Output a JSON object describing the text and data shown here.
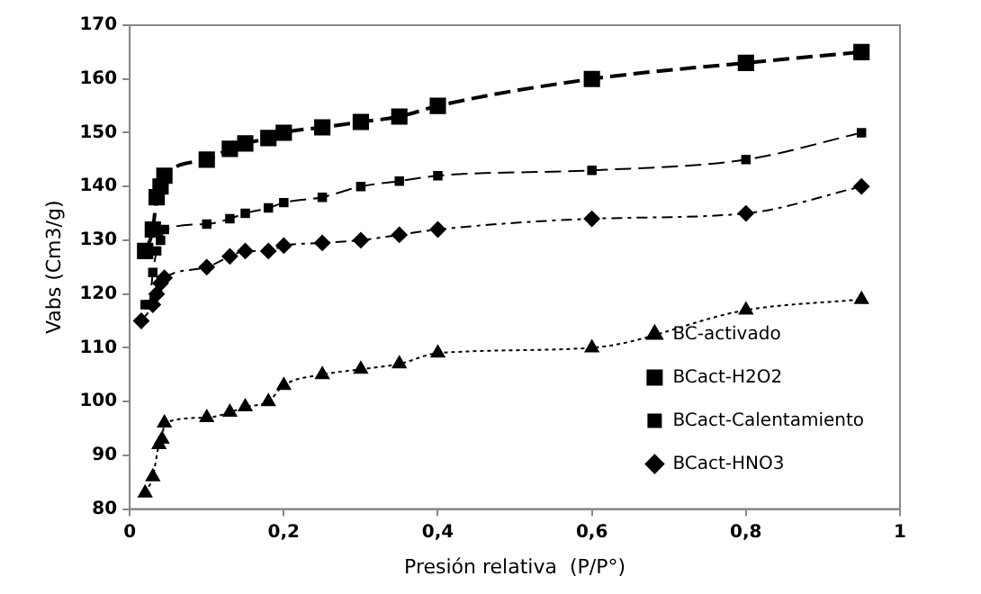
{
  "chart_data": {
    "type": "line",
    "xlabel": "Presión relativa  (P/P°)",
    "ylabel": "Vabs (Cm3/g)",
    "xlim": [
      0,
      1
    ],
    "xticks": [
      0,
      {
        "value": 0.2,
        "label": "0,2"
      },
      {
        "value": 0.4,
        "label": "0,4"
      },
      {
        "value": 0.6,
        "label": "0,6"
      },
      {
        "value": 0.8,
        "label": "0,8"
      },
      1
    ],
    "ylim": [
      80,
      170
    ],
    "yticks": [
      80,
      90,
      100,
      110,
      120,
      130,
      140,
      150,
      160,
      170
    ],
    "legend": "bottom right",
    "series": [
      {
        "name": "BC-activado",
        "color": "#000000",
        "marker": "triangle",
        "line_style": "dotted",
        "x": [
          0.02,
          0.03,
          0.038,
          0.042,
          0.045,
          0.1,
          0.13,
          0.15,
          0.18,
          0.2,
          0.25,
          0.3,
          0.35,
          0.4,
          0.6,
          0.8,
          0.95
        ],
        "values": [
          83,
          86,
          92,
          93,
          96,
          97,
          98,
          99,
          100,
          103,
          105,
          106,
          107,
          109,
          110,
          117,
          119
        ]
      },
      {
        "name": "BCact-H2O2",
        "color": "#000000",
        "marker": "square",
        "line_style": "dashed",
        "x": [
          0.02,
          0.03,
          0.035,
          0.04,
          0.045,
          0.1,
          0.13,
          0.15,
          0.18,
          0.2,
          0.25,
          0.3,
          0.35,
          0.4,
          0.6,
          0.8,
          0.95
        ],
        "values": [
          128,
          132,
          138,
          140,
          142,
          145,
          147,
          148,
          149,
          150,
          151,
          152,
          153,
          155,
          160,
          163,
          165
        ]
      },
      {
        "name": "BCact-Calentamiento",
        "color": "#000000",
        "marker": "square",
        "line_style": "dashed",
        "x": [
          0.02,
          0.025,
          0.03,
          0.035,
          0.04,
          0.045,
          0.1,
          0.13,
          0.15,
          0.18,
          0.2,
          0.25,
          0.3,
          0.35,
          0.4,
          0.6,
          0.8,
          0.95
        ],
        "values": [
          118,
          118,
          124,
          128,
          130,
          132,
          133,
          134,
          135,
          136,
          137,
          138,
          140,
          141,
          142,
          143,
          145,
          150
        ]
      },
      {
        "name": "BCact-HNO3",
        "color": "#000000",
        "marker": "diamond",
        "line_style": "dashdot",
        "x": [
          0.015,
          0.03,
          0.035,
          0.04,
          0.045,
          0.1,
          0.13,
          0.15,
          0.18,
          0.2,
          0.25,
          0.3,
          0.35,
          0.4,
          0.6,
          0.8,
          0.95
        ],
        "values": [
          115,
          118,
          120,
          122,
          123,
          125,
          127,
          128,
          128,
          129,
          129.5,
          130,
          131,
          132,
          134,
          135,
          140
        ]
      }
    ]
  }
}
